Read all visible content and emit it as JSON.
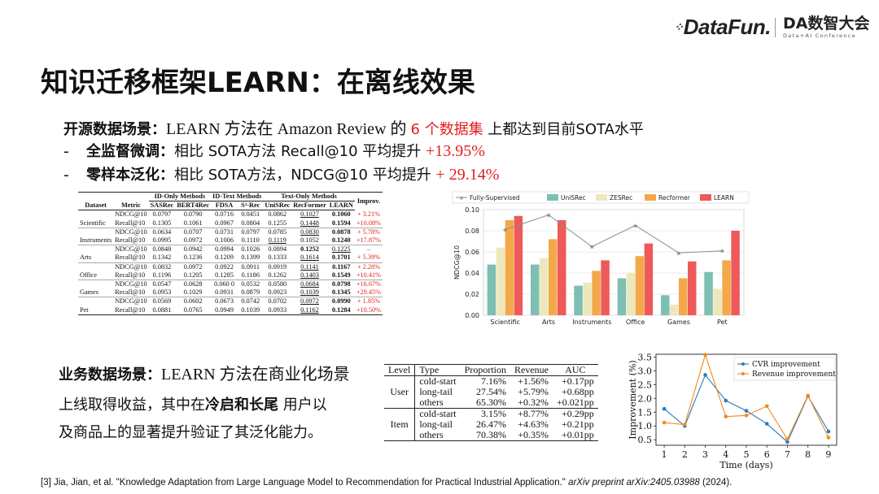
{
  "header": {
    "brand": "DataFun.",
    "conf_name": "DA数智大会",
    "conf_sub": "Data+AI Conference"
  },
  "title": "知识迁移框架LEARN：在离线效果",
  "open_source": {
    "label": "开源数据场景：",
    "text1": "LEARN 方法在 Amazon Review 的 ",
    "highlight": "6 个数据集",
    "text2": " 上都达到目前SOTA水平"
  },
  "bullets": [
    {
      "dash": "-",
      "label": "全监督微调：",
      "text": "相比 SOTA方法 Recall@10 平均提升 ",
      "value": "+13.95%"
    },
    {
      "dash": "-",
      "label": "零样本泛化：",
      "text": "相比 SOTA方法，NDCG@10 平均提升 ",
      "value": "+ 29.14%"
    }
  ],
  "results_table": {
    "group_headers": [
      "ID-Only Methods",
      "ID-Text Methods",
      "Text-Only Methods",
      "Improv."
    ],
    "columns": [
      "Dataset",
      "Metric",
      "SASRec",
      "BERT4Rec",
      "FDSA",
      "S³-Rec",
      "UniSRec",
      "RecFormer",
      "LEARN"
    ],
    "rows": [
      {
        "dataset": "Scientific",
        "metrics": [
          "NDCG@10",
          "Recall@10"
        ],
        "vals": [
          [
            "0.0797",
            "0.0790",
            "0.0716",
            "0.0451",
            "0.0862",
            "0.1027",
            "0.1060"
          ],
          [
            "0.1305",
            "0.1061",
            "0.0967",
            "0.0804",
            "0.1255",
            "0.1448",
            "0.1594"
          ]
        ],
        "improv": [
          "+ 3.21%",
          "+10.08%"
        ]
      },
      {
        "dataset": "Instruments",
        "metrics": [
          "NDCG@10",
          "Recall@10"
        ],
        "vals": [
          [
            "0.0634",
            "0.0707",
            "0.0731",
            "0.0797",
            "0.0785",
            "0.0830",
            "0.0878"
          ],
          [
            "0.0995",
            "0.0972",
            "0.1006",
            "0.1110",
            "0.1119",
            "0.1052",
            "0.1240"
          ]
        ],
        "improv": [
          "+ 5.78%",
          "+17.87%"
        ]
      },
      {
        "dataset": "Arts",
        "metrics": [
          "NDCG@10",
          "Recall@10"
        ],
        "vals": [
          [
            "0.0848",
            "0.0942",
            "0.0994",
            "0.1026",
            "0.0894",
            "0.1252",
            "0.1225"
          ],
          [
            "0.1342",
            "0.1236",
            "0.1209",
            "0.1399",
            "0.1333",
            "0.1614",
            "0.1701"
          ]
        ],
        "improv": [
          "–",
          "+ 5.39%"
        ]
      },
      {
        "dataset": "Office",
        "metrics": [
          "NDCG@10",
          "Recall@10"
        ],
        "vals": [
          [
            "0.0832",
            "0.0972",
            "0.0922",
            "0.0911",
            "0.0919",
            "0.1141",
            "0.1167"
          ],
          [
            "0.1196",
            "0.1205",
            "0.1285",
            "0.1186",
            "0.1262",
            "0.1403",
            "0.1549"
          ]
        ],
        "improv": [
          "+ 2.28%",
          "+10.41%"
        ]
      },
      {
        "dataset": "Games",
        "metrics": [
          "NDCG@10",
          "Recall@10"
        ],
        "vals": [
          [
            "0.0547",
            "0.0628",
            "0.060 0",
            "0.0532",
            "0.0580",
            "0.0684",
            "0.0798"
          ],
          [
            "0.0953",
            "0.1029",
            "0.0931",
            "0.0879",
            "0.0923",
            "0.1039",
            "0.1345"
          ]
        ],
        "improv": [
          "+16.67%",
          "+29.45%"
        ]
      },
      {
        "dataset": "Pet",
        "metrics": [
          "NDCG@10",
          "Recall@10"
        ],
        "vals": [
          [
            "0.0569",
            "0.0602",
            "0.0673",
            "0.0742",
            "0.0702",
            "0.0972",
            "0.0990"
          ],
          [
            "0.0881",
            "0.0765",
            "0.0949",
            "0.1039",
            "0.0933",
            "0.1162",
            "0.1284"
          ]
        ],
        "improv": [
          "+ 1.85%",
          "+10.50%"
        ]
      }
    ]
  },
  "chart_data": [
    {
      "type": "bar",
      "title": "",
      "xlabel": "",
      "ylabel": "NDCG@10",
      "ylim": [
        0,
        0.1
      ],
      "yticks": [
        "0.00",
        "0.02",
        "0.04",
        "0.06",
        "0.08",
        "0.10"
      ],
      "legend_position": "top",
      "categories": [
        "Scientific",
        "Arts",
        "Instruments",
        "Office",
        "Games",
        "Pet"
      ],
      "series": [
        {
          "name": "Fully-Supervised",
          "kind": "line",
          "color": "#8c8c8c",
          "values": [
            0.081,
            0.095,
            0.065,
            0.085,
            0.059,
            0.061
          ]
        },
        {
          "name": "UniSRec",
          "kind": "bar",
          "color": "#7dbfb2",
          "values": [
            0.048,
            0.048,
            0.028,
            0.035,
            0.019,
            0.041
          ]
        },
        {
          "name": "ZESRec",
          "kind": "bar",
          "color": "#ece8bc",
          "values": [
            0.064,
            0.054,
            0.031,
            0.04,
            0.01,
            0.025
          ]
        },
        {
          "name": "Recformer",
          "kind": "bar",
          "color": "#f3a84a",
          "values": [
            0.09,
            0.072,
            0.042,
            0.056,
            0.035,
            0.052
          ]
        },
        {
          "name": "LEARN",
          "kind": "bar",
          "color": "#ee5a5a",
          "values": [
            0.094,
            0.09,
            0.052,
            0.068,
            0.051,
            0.08
          ]
        }
      ]
    },
    {
      "type": "line",
      "title": "",
      "xlabel": "Time (days)",
      "ylabel": "Improvement (%)",
      "ylim": [
        0.3,
        3.6
      ],
      "yticks": [
        "0.5",
        "1.0",
        "1.5",
        "2.0",
        "2.5",
        "3.0",
        "3.5"
      ],
      "legend_position": "top-right",
      "x": [
        1,
        2,
        3,
        4,
        5,
        6,
        7,
        8,
        9
      ],
      "series": [
        {
          "name": "CVR improvement",
          "color": "#2a7ab8",
          "values": [
            1.62,
            1.0,
            2.85,
            1.92,
            1.55,
            1.08,
            0.42,
            2.08,
            0.8
          ]
        },
        {
          "name": "Revenue improvement",
          "color": "#f08a1c",
          "values": [
            1.12,
            1.05,
            3.58,
            1.34,
            1.38,
            1.72,
            0.52,
            2.1,
            0.58
          ]
        }
      ]
    }
  ],
  "business": {
    "label": "业务数据场景：",
    "line1_rest": "LEARN 方法在商业化场景",
    "line2_a": "上线取得收益，其中在",
    "line2_b": "冷启和长尾",
    "line2_c": " 用户以",
    "line3": "及商品上的显著提升验证了其泛化能力。"
  },
  "biz_table": {
    "headers": [
      "Level",
      "Type",
      "Proportion",
      "Revenue",
      "AUC"
    ],
    "groups": [
      {
        "level": "User",
        "rows": [
          [
            "cold-start",
            "7.16%",
            "+1.56%",
            "+0.17pp"
          ],
          [
            "long-tail",
            "27.54%",
            "+5.79%",
            "+0.68pp"
          ],
          [
            "others",
            "65.30%",
            "+0.32%",
            "+0.021pp"
          ]
        ]
      },
      {
        "level": "Item",
        "rows": [
          [
            "cold-start",
            "3.15%",
            "+8.77%",
            "+0.29pp"
          ],
          [
            "long-tail",
            "26.47%",
            "+4.63%",
            "+0.21pp"
          ],
          [
            "others",
            "70.38%",
            "+0.35%",
            "+0.01pp"
          ]
        ]
      }
    ]
  },
  "reference": {
    "prefix": "[3] Jia, Jian, et al. \"Knowledge Adaptation from Large Language Model to Recommendation for Practical Industrial Application.\" ",
    "venue": "arXiv preprint arXiv:2405.03988",
    "suffix": " (2024)."
  }
}
